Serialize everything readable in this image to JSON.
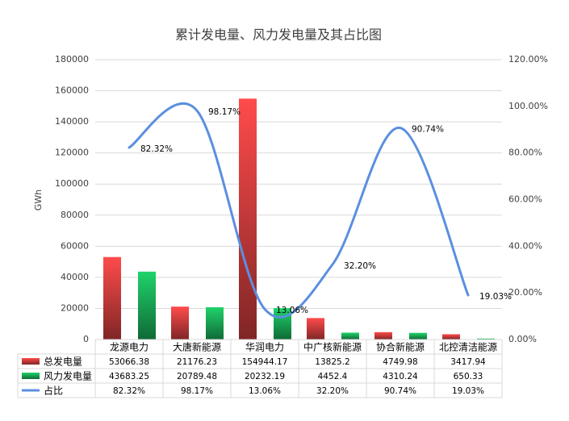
{
  "chart_data": {
    "type": "bar",
    "title": "累计发电量、风力发电量及其占比图",
    "y_label": "GWh",
    "categories": [
      "龙源电力",
      "大唐新能源",
      "华润电力",
      "中广核新能源",
      "协合新能源",
      "北控清洁能源"
    ],
    "series": [
      {
        "name": "总发电量",
        "type": "bar",
        "color": "#ff4b4b",
        "values": [
          53066.38,
          21176.23,
          154944.17,
          13825.2,
          4749.98,
          3417.94
        ]
      },
      {
        "name": "风力发电量",
        "type": "bar",
        "color": "#1fd36b",
        "values": [
          43683.25,
          20789.48,
          20232.19,
          4452.4,
          4310.24,
          650.33
        ]
      },
      {
        "name": "占比",
        "type": "line",
        "axis": "y2",
        "color": "#5b8fe0",
        "values": [
          82.32,
          98.17,
          13.06,
          32.2,
          90.74,
          19.03
        ],
        "value_labels": [
          "82.32%",
          "98.17%",
          "13.06%",
          "32.20%",
          "90.74%",
          "19.03%"
        ]
      }
    ],
    "ylim": [
      0,
      180000
    ],
    "yticks": [
      0,
      20000,
      40000,
      60000,
      80000,
      100000,
      120000,
      140000,
      160000,
      180000
    ],
    "y2lim": [
      0,
      120
    ],
    "y2ticks": [
      {
        "value": 0,
        "label": "0.00%"
      },
      {
        "value": 20,
        "label": "20.00%"
      },
      {
        "value": 40,
        "label": "40.00%"
      },
      {
        "value": 60,
        "label": "60.00%"
      },
      {
        "value": 80,
        "label": "80.00%"
      },
      {
        "value": 100,
        "label": "100.00%"
      },
      {
        "value": 120,
        "label": "120.00%"
      }
    ],
    "grid": true
  }
}
